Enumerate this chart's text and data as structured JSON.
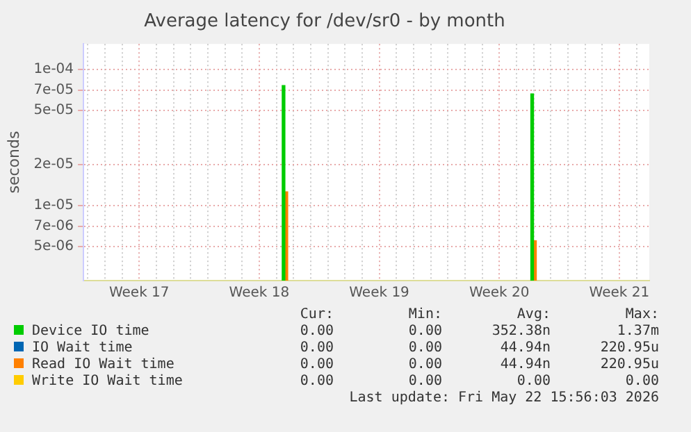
{
  "chart_data": {
    "type": "bar",
    "title": "Average latency for /dev/sr0 - by month",
    "ylabel": "seconds",
    "categories": [
      null,
      null,
      null,
      null,
      null,
      null,
      "Week 17",
      null,
      null,
      null,
      null,
      null,
      null,
      null,
      null,
      null,
      null,
      null,
      null,
      null,
      "Week 18",
      null,
      null,
      null,
      null,
      null,
      null,
      null,
      null,
      null,
      null,
      null,
      null,
      null,
      "Week 19",
      null,
      null,
      null,
      null,
      null,
      null,
      null,
      null,
      null,
      null,
      null,
      null,
      null,
      "Week 20",
      null,
      null,
      null,
      null,
      null,
      null,
      null,
      null,
      null,
      null,
      null,
      null,
      null,
      "Week 21",
      null,
      null,
      null
    ],
    "series": [
      {
        "name": "Device IO time",
        "color": "#00cc00",
        "values": [
          null,
          null,
          null,
          null,
          null,
          null,
          null,
          null,
          null,
          null,
          null,
          null,
          null,
          null,
          null,
          null,
          null,
          null,
          null,
          null,
          null,
          null,
          null,
          7.6e-05,
          null,
          null,
          null,
          null,
          null,
          null,
          null,
          null,
          null,
          null,
          null,
          null,
          null,
          null,
          null,
          null,
          null,
          null,
          null,
          null,
          null,
          null,
          null,
          null,
          null,
          null,
          null,
          null,
          6.6e-05,
          null,
          null,
          null,
          null,
          null,
          null,
          null,
          null,
          null,
          null,
          null,
          null,
          null
        ]
      },
      {
        "name": "IO Wait time",
        "color": "#0066b3",
        "values": [
          null,
          null,
          null,
          null,
          null,
          null,
          null,
          null,
          null,
          null,
          null,
          null,
          null,
          null,
          null,
          null,
          null,
          null,
          null,
          null,
          null,
          null,
          null,
          null,
          null,
          null,
          null,
          null,
          null,
          null,
          null,
          null,
          null,
          null,
          null,
          null,
          null,
          null,
          null,
          null,
          null,
          null,
          null,
          null,
          null,
          null,
          null,
          null,
          null,
          null,
          null,
          null,
          null,
          null,
          null,
          null,
          null,
          null,
          null,
          null,
          null,
          null,
          null,
          null,
          null,
          null
        ]
      },
      {
        "name": "Read IO Wait time",
        "color": "#ff8000",
        "values": [
          null,
          null,
          null,
          null,
          null,
          null,
          null,
          null,
          null,
          null,
          null,
          null,
          null,
          null,
          null,
          null,
          null,
          null,
          null,
          null,
          null,
          null,
          null,
          1.26e-05,
          null,
          null,
          null,
          null,
          null,
          null,
          null,
          null,
          null,
          null,
          null,
          null,
          null,
          null,
          null,
          null,
          null,
          null,
          null,
          null,
          null,
          null,
          null,
          null,
          null,
          null,
          null,
          null,
          5.5e-06,
          null,
          null,
          null,
          null,
          null,
          null,
          null,
          null,
          null,
          null,
          null,
          null,
          null
        ]
      },
      {
        "name": "Write IO Wait time",
        "color": "#ffcc00",
        "values": [
          null,
          null,
          null,
          null,
          null,
          null,
          null,
          null,
          null,
          null,
          null,
          null,
          null,
          null,
          null,
          null,
          null,
          null,
          null,
          null,
          null,
          null,
          null,
          null,
          null,
          null,
          null,
          null,
          null,
          null,
          null,
          null,
          null,
          null,
          null,
          null,
          null,
          null,
          null,
          null,
          null,
          null,
          null,
          null,
          null,
          null,
          null,
          null,
          null,
          null,
          null,
          null,
          null,
          null,
          null,
          null,
          null,
          null,
          null,
          null,
          null,
          null,
          null,
          null,
          null,
          null
        ]
      }
    ],
    "ylim": [
      2.8e-06,
      0.000154
    ],
    "yticks": [
      {
        "value": 5e-06,
        "label": "5e-06"
      },
      {
        "value": 7e-06,
        "label": "7e-06"
      },
      {
        "value": 1e-05,
        "label": "1e-05"
      },
      {
        "value": 2e-05,
        "label": "2e-05"
      },
      {
        "value": 5e-05,
        "label": "5e-05"
      },
      {
        "value": 7e-05,
        "label": "7e-05"
      },
      {
        "value": 0.0001,
        "label": "1e-04"
      }
    ],
    "log": true,
    "grid": true,
    "legend": "bottom",
    "annotations": [
      "Cur:",
      "Min:",
      "Avg:",
      "Max:",
      "0.00",
      "0.00",
      "352.38n",
      "1.37m",
      "0.00",
      "0.00",
      "44.94n",
      "220.95u",
      "0.00",
      "0.00",
      "44.94n",
      "220.95u",
      "0.00",
      "0.00",
      "0.00",
      "0.00",
      "Last update: Fri May 22 15:56:03 2026"
    ]
  }
}
